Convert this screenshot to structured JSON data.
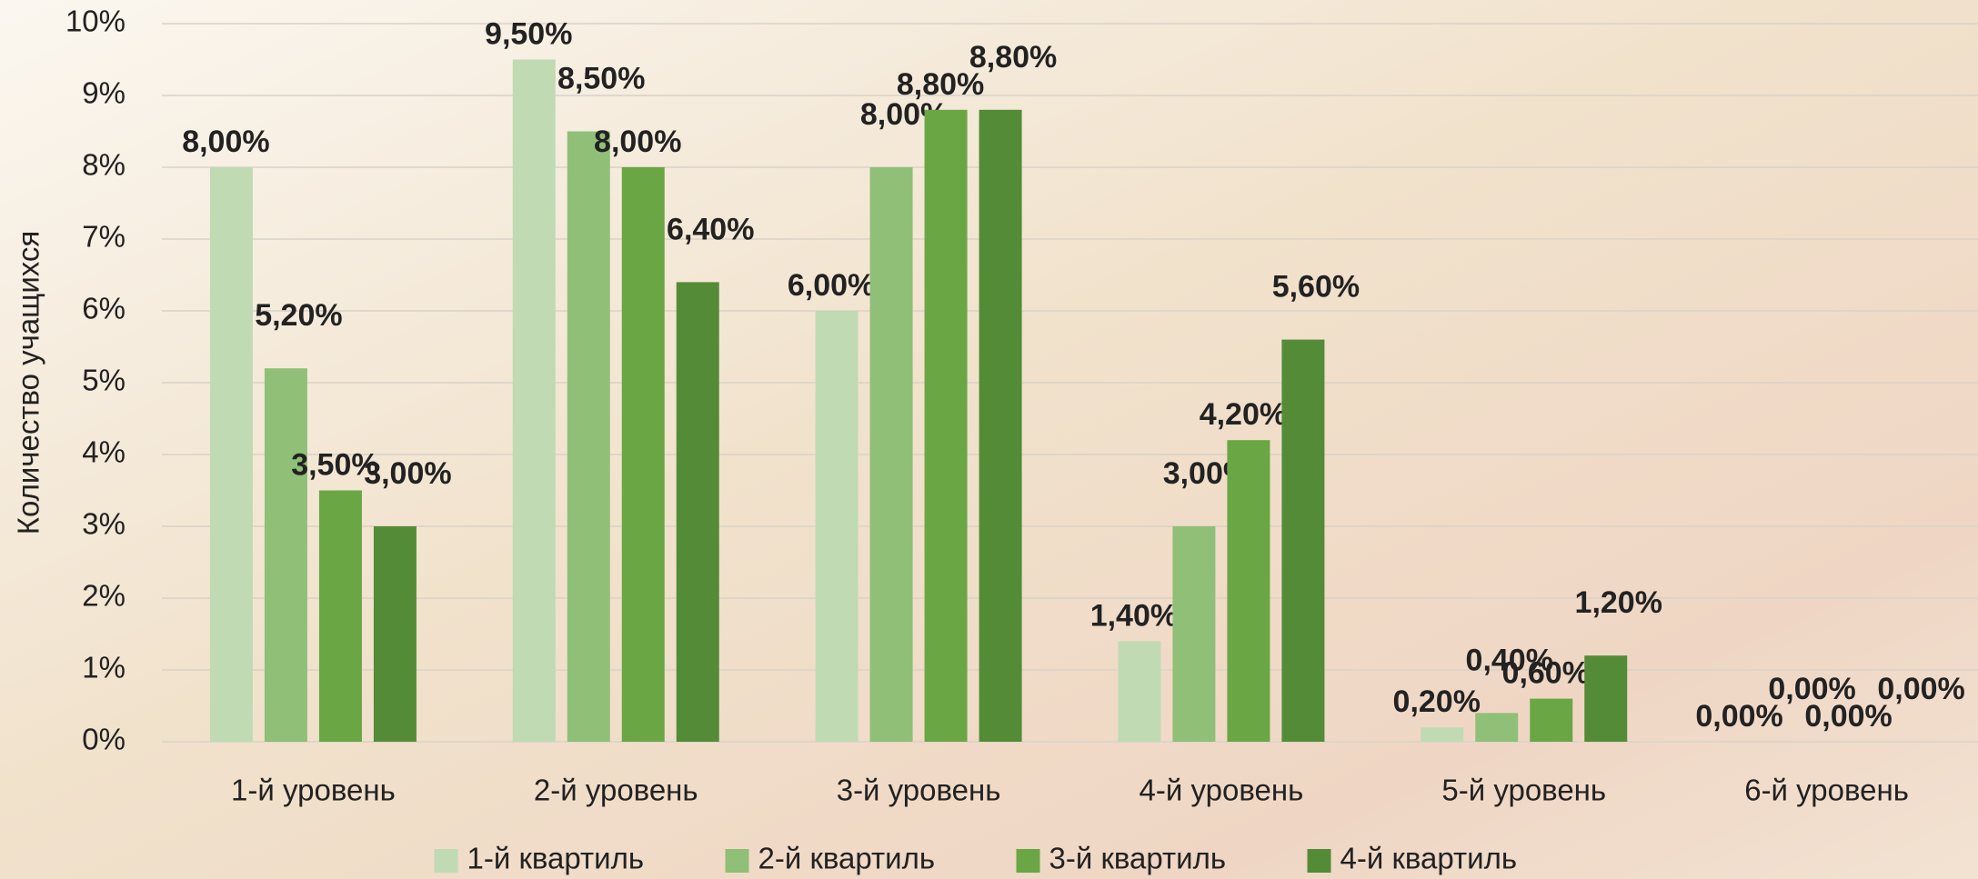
{
  "chart_data": {
    "type": "bar",
    "y_axis_label": "Количество учащихся",
    "categories": [
      "1-й уровень",
      "2-й уровень",
      "3-й уровень",
      "4-й уровень",
      "5-й уровень",
      "6-й уровень"
    ],
    "series": [
      {
        "name": "1-й квартиль",
        "color": "#c0dab3",
        "values": [
          8,
          9.5,
          6,
          1.4,
          0.2,
          0
        ],
        "value_labels": [
          "8,00%",
          "9,50%",
          "6,00%",
          "1,40%",
          "0,20%",
          "0,00%"
        ]
      },
      {
        "name": "2-й квартиль",
        "color": "#90bf78",
        "values": [
          5.2,
          8.5,
          8,
          3,
          0.4,
          0
        ],
        "value_labels": [
          "5,20%",
          "8,50%",
          "8,00%",
          "3,00%",
          "0,40%",
          "0,00%"
        ]
      },
      {
        "name": "3-й квартиль",
        "color": "#6aa644",
        "values": [
          3.5,
          8,
          8.8,
          4.2,
          0.6,
          0
        ],
        "value_labels": [
          "3,50%",
          "8,00%",
          "8,80%",
          "4,20%",
          "0,60%",
          "0,00%"
        ]
      },
      {
        "name": "4-й квартиль",
        "color": "#548b37",
        "values": [
          3,
          6.4,
          8.8,
          5.6,
          1.2,
          0
        ],
        "value_labels": [
          "3,00%",
          "6,40%",
          "8,80%",
          "5,60%",
          "1,20%",
          "0,00%"
        ]
      }
    ],
    "ylim": [
      0,
      10
    ],
    "yticks": [
      {
        "value": 0,
        "label": "0%"
      },
      {
        "value": 1,
        "label": "1%"
      },
      {
        "value": 2,
        "label": "2%"
      },
      {
        "value": 3,
        "label": "3%"
      },
      {
        "value": 4,
        "label": "4%"
      },
      {
        "value": 5,
        "label": "5%"
      },
      {
        "value": 6,
        "label": "6%"
      },
      {
        "value": 7,
        "label": "7%"
      },
      {
        "value": 8,
        "label": "8%"
      },
      {
        "value": 9,
        "label": "9%"
      },
      {
        "value": 10,
        "label": "10%"
      }
    ],
    "grid": true,
    "legend": "bottom"
  }
}
